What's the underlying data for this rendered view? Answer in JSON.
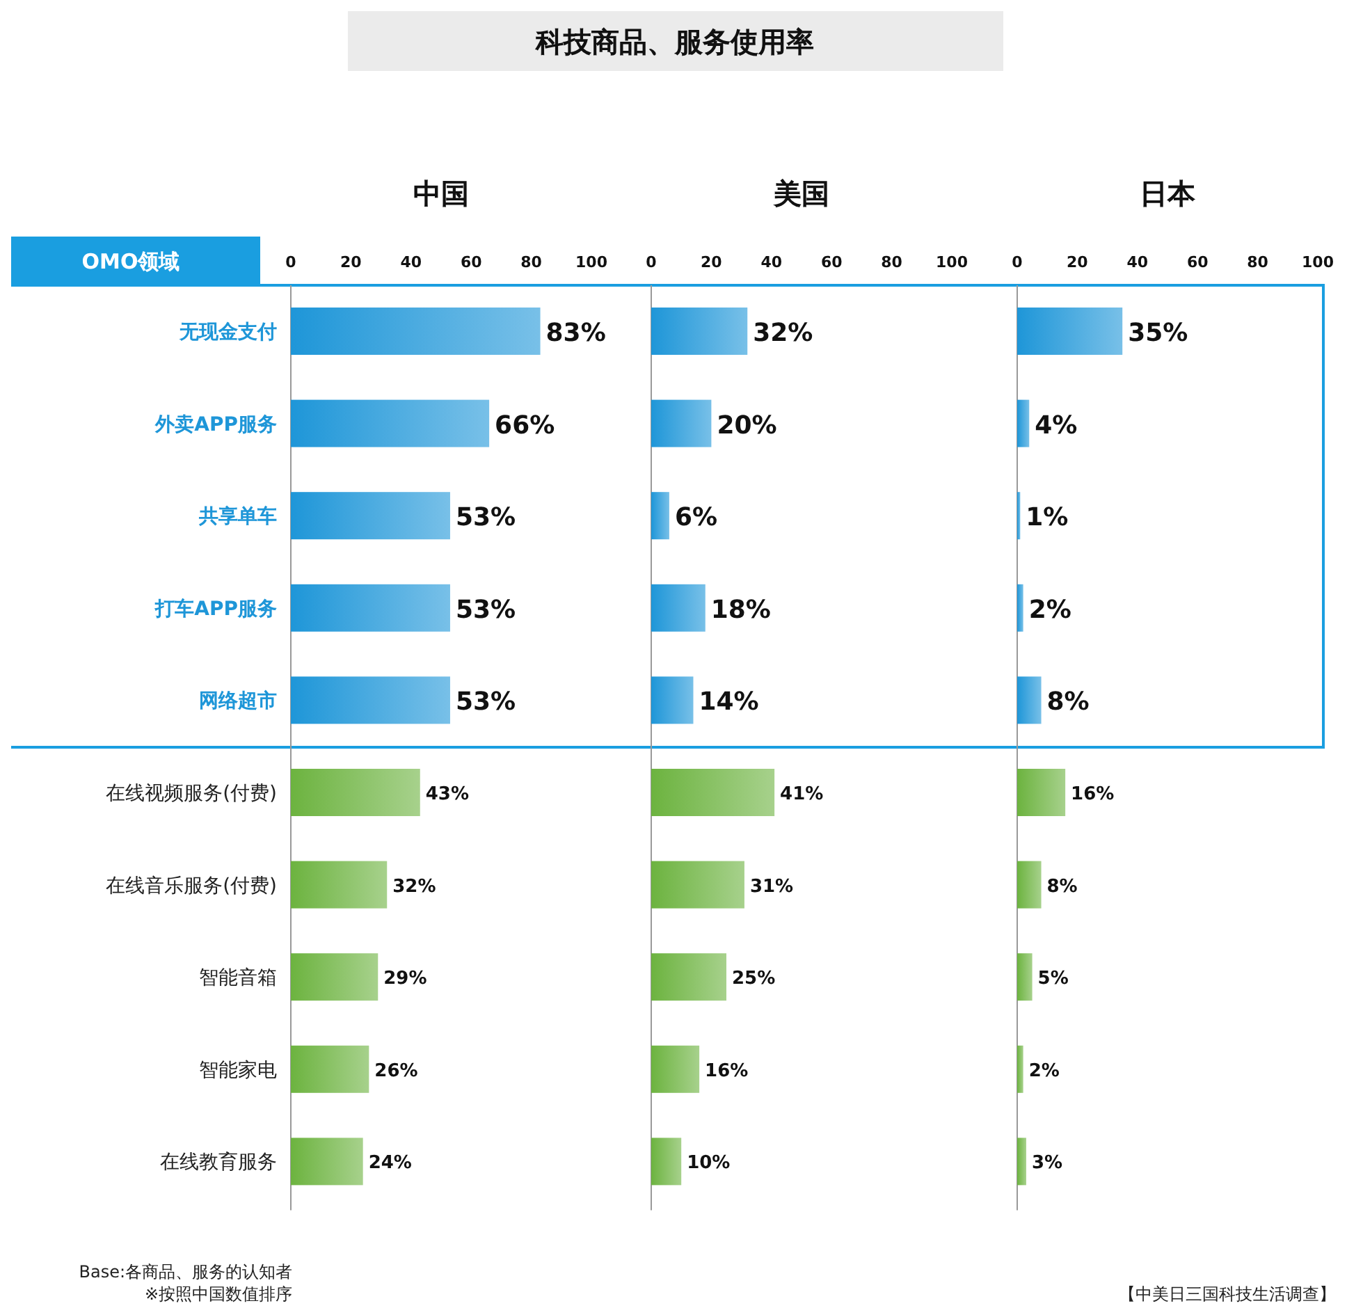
{
  "chart_data": [
    {
      "type": "other",
      "title": "科技商品、服务使用率",
      "annotations": [
        "OMO领域",
        "Base:各商品、服务的认知者",
        "※按照中国数值排序",
        "【中美日三国科技生活调查】"
      ]
    },
    {
      "type": "bar",
      "orientation": "horizontal",
      "title": "中国",
      "categories": [
        "无现金支付",
        "外卖APP服务",
        "共享单车",
        "打车APP服务",
        "网络超市",
        "在线视频服务(付费)",
        "在线音乐服务(付费)",
        "智能音箱",
        "智能家电",
        "在线教育服务"
      ],
      "values": [
        83,
        66,
        53,
        53,
        53,
        43,
        32,
        29,
        26,
        24
      ],
      "value_labels": [
        "83%",
        "66%",
        "53%",
        "53%",
        "53%",
        "43%",
        "32%",
        "29%",
        "26%",
        "24%"
      ],
      "colors": [
        "#1e96d8",
        "#1e96d8",
        "#1e96d8",
        "#1e96d8",
        "#1e96d8",
        "#6cb33f",
        "#6cb33f",
        "#6cb33f",
        "#6cb33f",
        "#6cb33f"
      ],
      "xlim": [
        0,
        100
      ],
      "xticks": [
        0,
        20,
        40,
        60,
        80,
        100
      ]
    },
    {
      "type": "bar",
      "orientation": "horizontal",
      "title": "美国",
      "values": [
        32,
        20,
        6,
        18,
        14,
        41,
        31,
        25,
        16,
        10
      ],
      "value_labels": [
        "32%",
        "20%",
        "6%",
        "18%",
        "14%",
        "41%",
        "31%",
        "25%",
        "16%",
        "10%"
      ],
      "colors": [
        "#1e96d8",
        "#1e96d8",
        "#1e96d8",
        "#1e96d8",
        "#1e96d8",
        "#6cb33f",
        "#6cb33f",
        "#6cb33f",
        "#6cb33f",
        "#6cb33f"
      ],
      "xlim": [
        0,
        100
      ],
      "xticks": [
        0,
        20,
        40,
        60,
        80,
        100
      ],
      "tick_labels": "x"
    },
    {
      "type": "bar",
      "orientation": "horizontal",
      "title": "日本",
      "values": [
        35,
        4,
        1,
        2,
        8,
        16,
        8,
        5,
        2,
        3
      ],
      "value_labels": [
        "35%",
        "4%",
        "1%",
        "2%",
        "8%",
        "16%",
        "8%",
        "5%",
        "2%",
        "3%"
      ],
      "colors": [
        "#1e96d8",
        "#1e96d8",
        "#1e96d8",
        "#1e96d8",
        "#1e96d8",
        "#6cb33f",
        "#6cb33f",
        "#6cb33f",
        "#6cb33f",
        "#6cb33f"
      ],
      "xlim": [
        0,
        100
      ],
      "xticks": [
        0,
        20,
        40,
        60,
        80,
        100
      ],
      "tick_labels": "x"
    }
  ]
}
